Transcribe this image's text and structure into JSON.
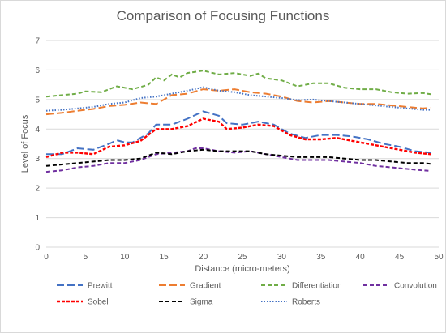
{
  "chart_data": {
    "type": "line",
    "title": "Comparison of Focusing Functions",
    "xlabel": "Distance (micro-meters)",
    "ylabel": "Level of Focus",
    "xlim": [
      0,
      50
    ],
    "ylim": [
      0,
      7
    ],
    "x_ticks": [
      0,
      5,
      10,
      15,
      20,
      25,
      30,
      35,
      40,
      45,
      50
    ],
    "y_ticks": [
      0,
      1,
      2,
      3,
      4,
      5,
      6,
      7
    ],
    "grid": true,
    "legend_position": "bottom",
    "series": [
      {
        "name": "Prewitt",
        "color": "#4472c4",
        "dash": "long-dash",
        "points": [
          [
            0,
            3.15
          ],
          [
            2,
            3.15
          ],
          [
            4,
            3.35
          ],
          [
            6,
            3.3
          ],
          [
            8,
            3.5
          ],
          [
            9,
            3.62
          ],
          [
            10,
            3.55
          ],
          [
            11,
            3.55
          ],
          [
            13,
            3.85
          ],
          [
            14,
            4.15
          ],
          [
            16,
            4.15
          ],
          [
            18,
            4.35
          ],
          [
            20,
            4.6
          ],
          [
            22,
            4.45
          ],
          [
            23,
            4.2
          ],
          [
            25,
            4.15
          ],
          [
            27,
            4.25
          ],
          [
            29,
            4.15
          ],
          [
            31,
            3.85
          ],
          [
            33,
            3.7
          ],
          [
            35,
            3.8
          ],
          [
            37,
            3.8
          ],
          [
            39,
            3.75
          ],
          [
            41,
            3.65
          ],
          [
            43,
            3.5
          ],
          [
            45,
            3.4
          ],
          [
            47,
            3.25
          ],
          [
            49,
            3.2
          ]
        ]
      },
      {
        "name": "Gradient",
        "color": "#ed7d31",
        "dash": "long-dash",
        "points": [
          [
            0,
            4.5
          ],
          [
            2,
            4.55
          ],
          [
            4,
            4.62
          ],
          [
            6,
            4.68
          ],
          [
            8,
            4.78
          ],
          [
            10,
            4.82
          ],
          [
            12,
            4.9
          ],
          [
            14,
            4.85
          ],
          [
            16,
            5.15
          ],
          [
            18,
            5.2
          ],
          [
            20,
            5.35
          ],
          [
            22,
            5.3
          ],
          [
            24,
            5.35
          ],
          [
            26,
            5.25
          ],
          [
            28,
            5.2
          ],
          [
            30,
            5.1
          ],
          [
            32,
            4.95
          ],
          [
            34,
            4.9
          ],
          [
            36,
            4.95
          ],
          [
            38,
            4.9
          ],
          [
            40,
            4.85
          ],
          [
            42,
            4.85
          ],
          [
            44,
            4.8
          ],
          [
            46,
            4.75
          ],
          [
            48,
            4.7
          ],
          [
            49,
            4.72
          ]
        ]
      },
      {
        "name": "Differentiation",
        "color": "#70ad47",
        "dash": "dash",
        "points": [
          [
            0,
            5.1
          ],
          [
            2,
            5.15
          ],
          [
            4,
            5.2
          ],
          [
            5,
            5.28
          ],
          [
            7,
            5.25
          ],
          [
            9,
            5.45
          ],
          [
            11,
            5.35
          ],
          [
            13,
            5.5
          ],
          [
            14,
            5.75
          ],
          [
            15,
            5.65
          ],
          [
            16,
            5.85
          ],
          [
            17,
            5.75
          ],
          [
            18,
            5.9
          ],
          [
            20,
            5.98
          ],
          [
            22,
            5.85
          ],
          [
            24,
            5.9
          ],
          [
            26,
            5.8
          ],
          [
            27,
            5.88
          ],
          [
            28,
            5.72
          ],
          [
            30,
            5.65
          ],
          [
            32,
            5.45
          ],
          [
            34,
            5.55
          ],
          [
            36,
            5.55
          ],
          [
            38,
            5.4
          ],
          [
            40,
            5.35
          ],
          [
            42,
            5.35
          ],
          [
            44,
            5.25
          ],
          [
            46,
            5.2
          ],
          [
            48,
            5.22
          ],
          [
            49,
            5.18
          ]
        ]
      },
      {
        "name": "Convolution",
        "color": "#7030a0",
        "dash": "dash",
        "points": [
          [
            0,
            2.55
          ],
          [
            2,
            2.6
          ],
          [
            4,
            2.7
          ],
          [
            6,
            2.75
          ],
          [
            8,
            2.85
          ],
          [
            10,
            2.85
          ],
          [
            12,
            2.95
          ],
          [
            14,
            3.15
          ],
          [
            16,
            3.2
          ],
          [
            18,
            3.25
          ],
          [
            19,
            3.35
          ],
          [
            20,
            3.35
          ],
          [
            22,
            3.25
          ],
          [
            24,
            3.2
          ],
          [
            26,
            3.25
          ],
          [
            28,
            3.15
          ],
          [
            30,
            3.05
          ],
          [
            32,
            2.95
          ],
          [
            34,
            2.95
          ],
          [
            36,
            2.95
          ],
          [
            38,
            2.9
          ],
          [
            40,
            2.85
          ],
          [
            42,
            2.75
          ],
          [
            44,
            2.7
          ],
          [
            46,
            2.65
          ],
          [
            48,
            2.6
          ],
          [
            49,
            2.58
          ]
        ]
      },
      {
        "name": "Sobel",
        "color": "#ff0000",
        "dash": "short-dash",
        "points": [
          [
            0,
            3.05
          ],
          [
            2,
            3.2
          ],
          [
            4,
            3.2
          ],
          [
            6,
            3.15
          ],
          [
            8,
            3.4
          ],
          [
            10,
            3.45
          ],
          [
            12,
            3.6
          ],
          [
            14,
            4.0
          ],
          [
            16,
            4.0
          ],
          [
            18,
            4.1
          ],
          [
            20,
            4.35
          ],
          [
            22,
            4.25
          ],
          [
            23,
            4.0
          ],
          [
            25,
            4.05
          ],
          [
            27,
            4.15
          ],
          [
            29,
            4.1
          ],
          [
            31,
            3.8
          ],
          [
            33,
            3.65
          ],
          [
            35,
            3.65
          ],
          [
            37,
            3.7
          ],
          [
            39,
            3.6
          ],
          [
            41,
            3.5
          ],
          [
            43,
            3.4
          ],
          [
            45,
            3.3
          ],
          [
            47,
            3.2
          ],
          [
            49,
            3.15
          ]
        ]
      },
      {
        "name": "Sigma",
        "color": "#000000",
        "dash": "dash",
        "points": [
          [
            0,
            2.75
          ],
          [
            2,
            2.8
          ],
          [
            4,
            2.85
          ],
          [
            6,
            2.9
          ],
          [
            8,
            2.95
          ],
          [
            10,
            2.95
          ],
          [
            12,
            3.0
          ],
          [
            14,
            3.2
          ],
          [
            16,
            3.15
          ],
          [
            18,
            3.25
          ],
          [
            20,
            3.3
          ],
          [
            22,
            3.25
          ],
          [
            24,
            3.25
          ],
          [
            26,
            3.25
          ],
          [
            28,
            3.15
          ],
          [
            30,
            3.1
          ],
          [
            32,
            3.05
          ],
          [
            34,
            3.05
          ],
          [
            36,
            3.05
          ],
          [
            38,
            3.0
          ],
          [
            40,
            2.95
          ],
          [
            42,
            2.95
          ],
          [
            44,
            2.9
          ],
          [
            46,
            2.85
          ],
          [
            48,
            2.85
          ],
          [
            49,
            2.82
          ]
        ]
      },
      {
        "name": "Roberts",
        "color": "#4472c4",
        "dash": "dot",
        "points": [
          [
            0,
            4.62
          ],
          [
            2,
            4.65
          ],
          [
            4,
            4.7
          ],
          [
            6,
            4.75
          ],
          [
            8,
            4.85
          ],
          [
            10,
            4.9
          ],
          [
            12,
            5.05
          ],
          [
            14,
            5.1
          ],
          [
            16,
            5.2
          ],
          [
            18,
            5.3
          ],
          [
            20,
            5.42
          ],
          [
            22,
            5.3
          ],
          [
            24,
            5.25
          ],
          [
            26,
            5.15
          ],
          [
            28,
            5.1
          ],
          [
            30,
            5.05
          ],
          [
            32,
            4.98
          ],
          [
            34,
            5.0
          ],
          [
            36,
            4.95
          ],
          [
            38,
            4.9
          ],
          [
            40,
            4.85
          ],
          [
            42,
            4.8
          ],
          [
            44,
            4.75
          ],
          [
            46,
            4.7
          ],
          [
            48,
            4.65
          ],
          [
            49,
            4.65
          ]
        ]
      }
    ]
  }
}
